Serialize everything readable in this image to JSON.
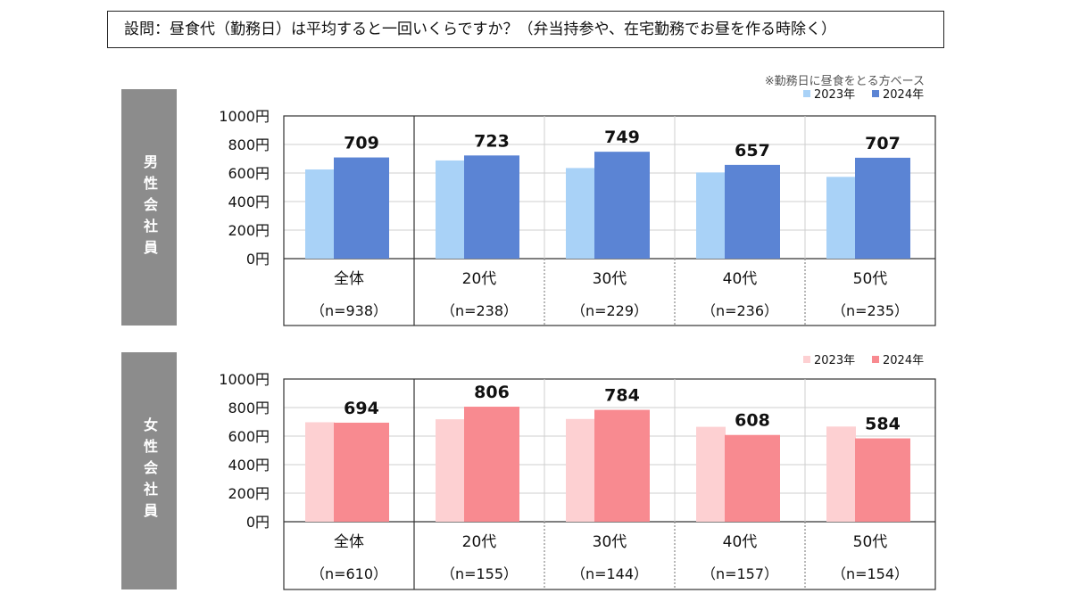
{
  "question": "設問：昼食代（勤務日）は平均すると一回いくらですか？（弁当持参や、在宅勤務でお昼を作る時除く）",
  "note": "※勤務日に昼食をとる方ベース",
  "chart_data": [
    {
      "type": "bar",
      "group_label": "男性会社員",
      "categories": [
        "全体",
        "20代",
        "30代",
        "40代",
        "50代"
      ],
      "sample_sizes": [
        "（n=938）",
        "（n=238）",
        "（n=229）",
        "（n=236）",
        "（n=235）"
      ],
      "series": [
        {
          "name": "2023年",
          "values": [
            625,
            688,
            635,
            604,
            573
          ],
          "color": "#a9d2f7"
        },
        {
          "name": "2024年",
          "values": [
            709,
            723,
            749,
            657,
            707
          ],
          "color": "#5b84d4"
        }
      ],
      "data_labels": [
        "709",
        "723",
        "749",
        "657",
        "707"
      ],
      "y_ticks": [
        "0円",
        "200円",
        "400円",
        "600円",
        "800円",
        "1000円"
      ],
      "ylim": [
        0,
        1000
      ],
      "grid": true,
      "legend_position": "top-right"
    },
    {
      "type": "bar",
      "group_label": "女性会社員",
      "categories": [
        "全体",
        "20代",
        "30代",
        "40代",
        "50代"
      ],
      "sample_sizes": [
        "（n=610）",
        "（n=155）",
        "（n=144）",
        "（n=157）",
        "（n=154）"
      ],
      "series": [
        {
          "name": "2023年",
          "values": [
            697,
            718,
            720,
            665,
            667
          ],
          "color": "#fdd0d2"
        },
        {
          "name": "2024年",
          "values": [
            694,
            806,
            784,
            608,
            584
          ],
          "color": "#f88a90"
        }
      ],
      "data_labels": [
        "694",
        "806",
        "784",
        "608",
        "584"
      ],
      "y_ticks": [
        "0円",
        "200円",
        "400円",
        "600円",
        "800円",
        "1000円"
      ],
      "ylim": [
        0,
        1000
      ],
      "grid": true,
      "legend_position": "top-right"
    }
  ]
}
